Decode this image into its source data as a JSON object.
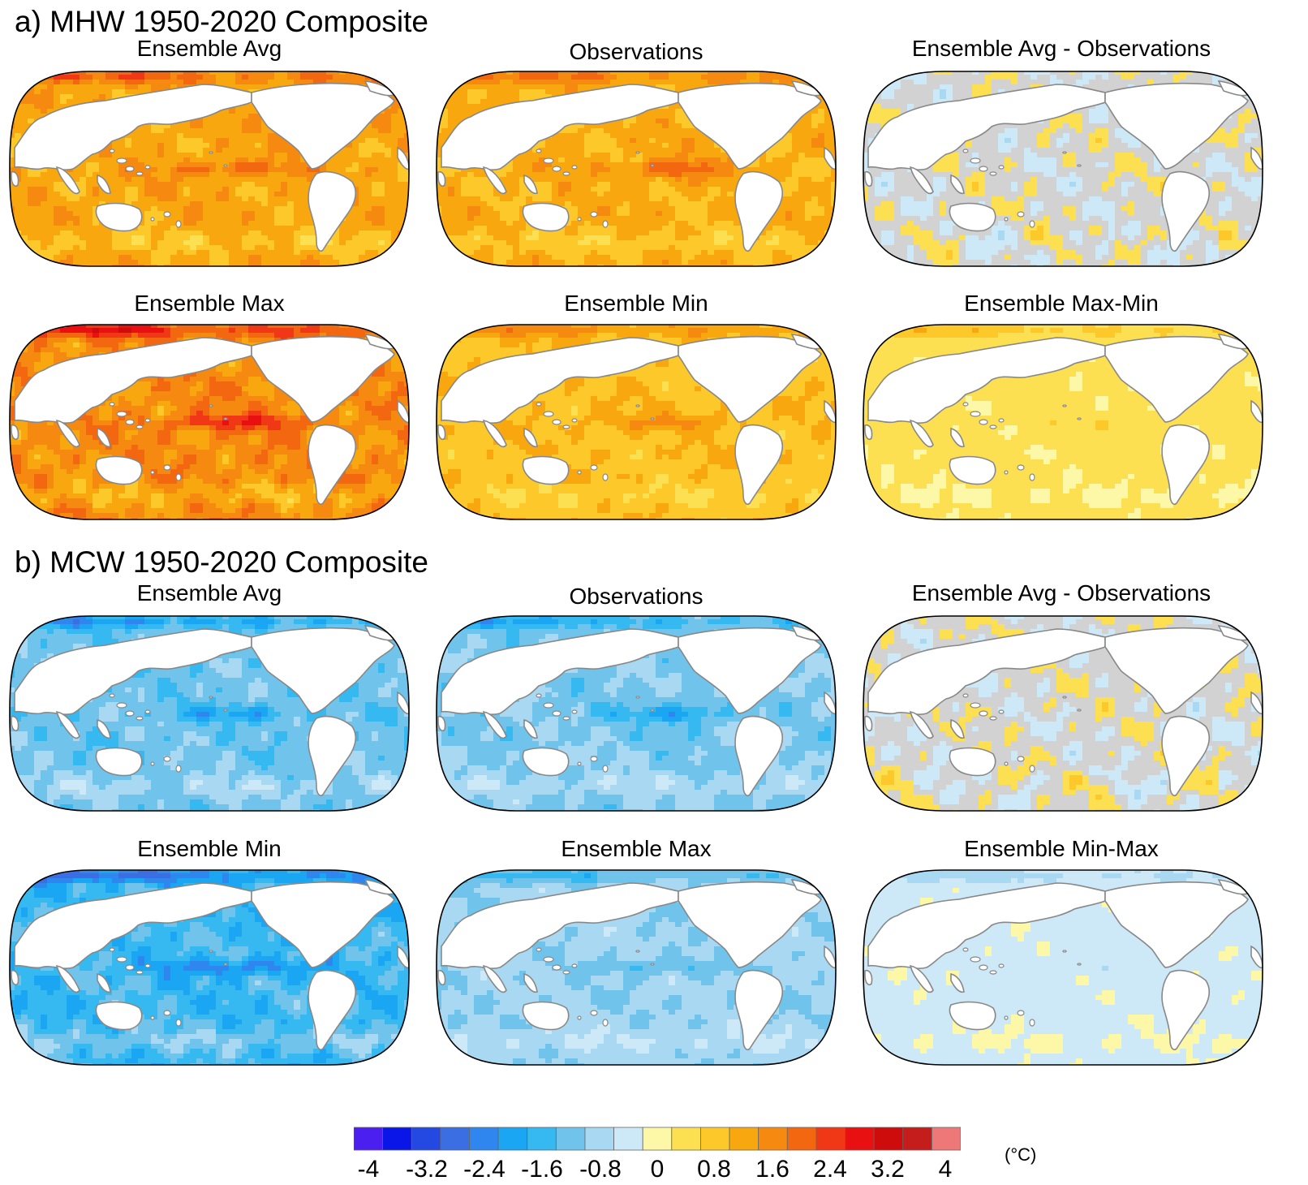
{
  "sections": [
    {
      "title": "a) MHW 1950-2020 Composite",
      "panels": [
        {
          "title": "Ensemble Avg",
          "palette": "warm",
          "variant": "avg",
          "intensity": 1.0
        },
        {
          "title": "Observations",
          "palette": "warm",
          "variant": "obs",
          "intensity": 0.9
        },
        {
          "title": "Ensemble Avg - Observations",
          "palette": "diff_warm",
          "variant": "diff",
          "intensity": 0.6
        },
        {
          "title": "Ensemble Max",
          "palette": "warm",
          "variant": "max",
          "intensity": 1.3
        },
        {
          "title": "Ensemble Min",
          "palette": "warm",
          "variant": "min",
          "intensity": 0.75
        },
        {
          "title": "Ensemble Max-Min",
          "palette": "warm",
          "variant": "range",
          "intensity": 0.55
        }
      ]
    },
    {
      "title": "b) MCW 1950-2020 Composite",
      "panels": [
        {
          "title": "Ensemble Avg",
          "palette": "cool",
          "variant": "avg",
          "intensity": 1.0
        },
        {
          "title": "Observations",
          "palette": "cool",
          "variant": "obs",
          "intensity": 0.9
        },
        {
          "title": "Ensemble Avg - Observations",
          "palette": "diff_cool",
          "variant": "diff",
          "intensity": 0.6
        },
        {
          "title": "Ensemble Min",
          "palette": "cool",
          "variant": "max",
          "intensity": 1.3
        },
        {
          "title": "Ensemble Max",
          "palette": "cool",
          "variant": "min",
          "intensity": 0.75
        },
        {
          "title": "Ensemble Min-Max",
          "palette": "cool",
          "variant": "range",
          "intensity": 0.55
        }
      ]
    }
  ],
  "colorbar": {
    "colors": [
      "#4a1ff0",
      "#0a16e8",
      "#2448e2",
      "#3a6ee2",
      "#2f86ee",
      "#1aa6f2",
      "#36b8f0",
      "#70c4ec",
      "#a8d8f2",
      "#cde8f6",
      "#fdf7a8",
      "#fde052",
      "#fcc82a",
      "#f9a70e",
      "#f68a10",
      "#f26710",
      "#f03816",
      "#e81010",
      "#cf0c0c",
      "#c51c1c",
      "#ee7878"
    ],
    "labels": [
      "-4",
      "-3.2",
      "-2.4",
      "-1.6",
      "-0.8",
      "0",
      "0.8",
      "1.6",
      "2.4",
      "3.2",
      "4"
    ],
    "unit": "(°C)",
    "range": [
      -4,
      4
    ]
  },
  "legend_colors": {
    "land": "#ffffff",
    "coast": "#888888",
    "border": "#000000",
    "near_zero": "#d2d2d2"
  }
}
